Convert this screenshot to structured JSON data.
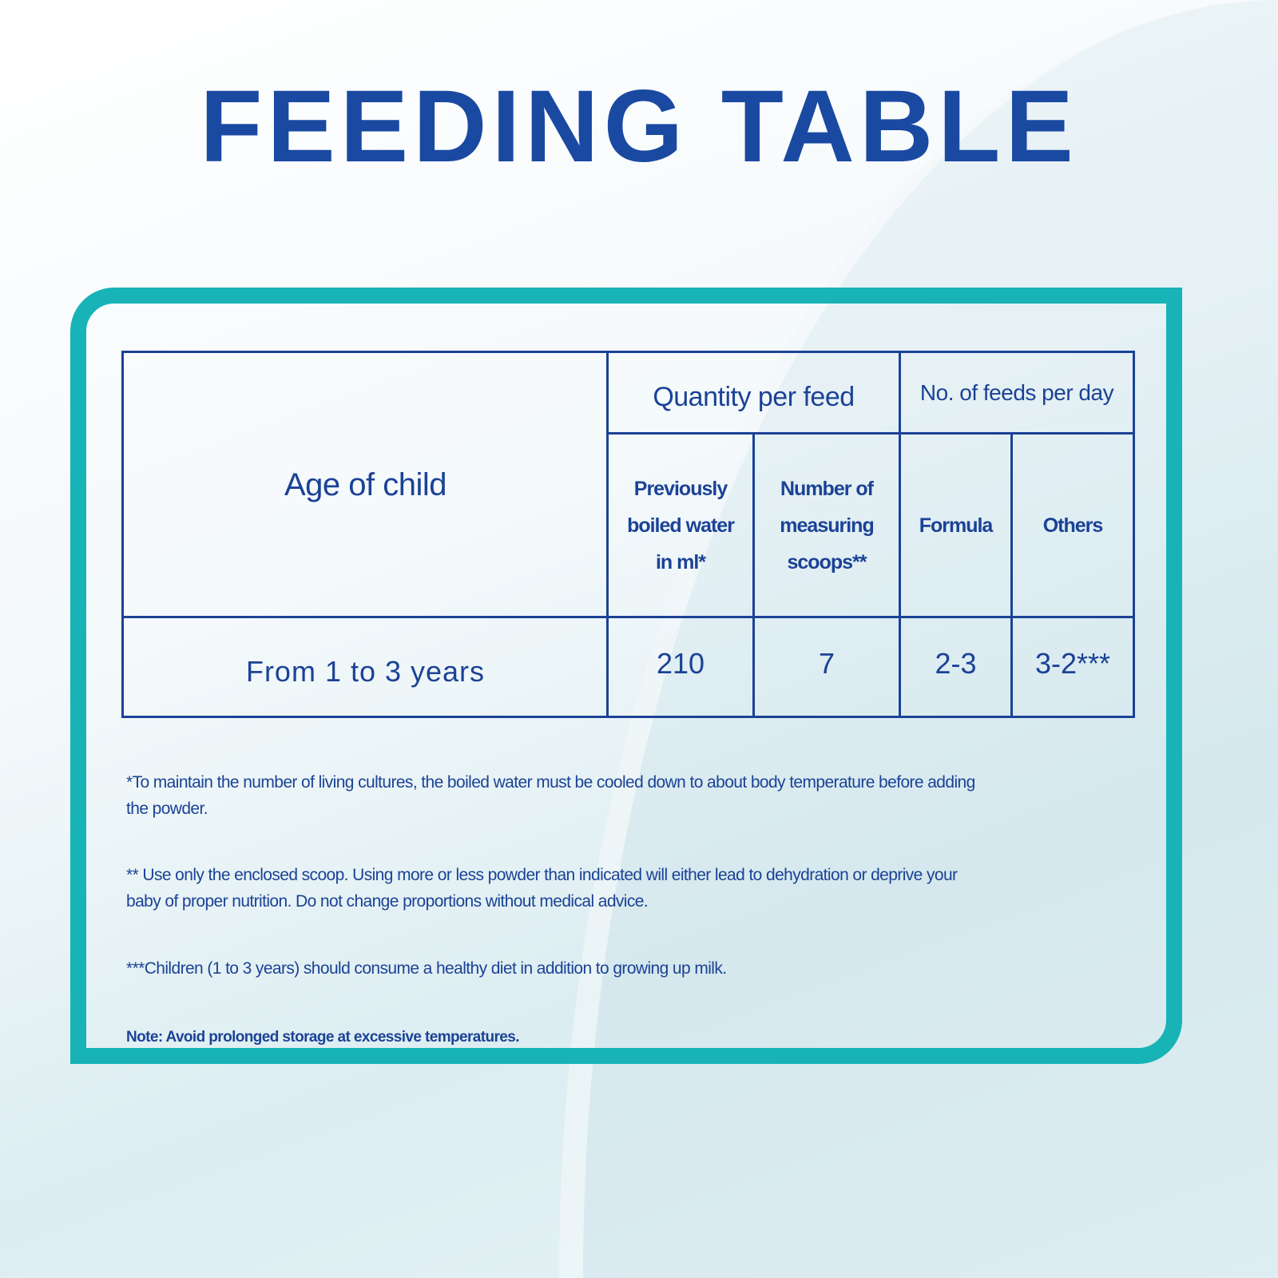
{
  "title": "FEEDING TABLE",
  "colors": {
    "title": "#1a49a2",
    "text": "#1b4296",
    "frame": "#17b3b6"
  },
  "table": {
    "headers": {
      "age": "Age of child",
      "quantity_group": "Quantity per feed",
      "feeds_group": "No. of feeds per day",
      "water": [
        "Previously",
        "boiled water",
        "in ml*"
      ],
      "scoops": [
        "Number of",
        "measuring",
        "scoops**"
      ],
      "formula": "Formula",
      "others": "Others"
    },
    "rows": [
      {
        "age": "From 1 to 3 years",
        "water": "210",
        "scoops": "7",
        "formula": "2-3",
        "others": "3-2***"
      }
    ]
  },
  "notes": [
    [
      "*To maintain the number of living cultures, the boiled water must be cooled down to about body temperature before adding",
      "the powder."
    ],
    [
      "** Use only the enclosed scoop. Using more or less powder than indicated will either lead to dehydration or deprive your",
      "baby of proper nutrition. Do not change proportions without medical advice."
    ],
    [
      "***Children (1 to 3 years) should consume a healthy diet in addition to growing up milk."
    ]
  ],
  "storage_note": "Note: Avoid prolonged storage at excessive temperatures."
}
